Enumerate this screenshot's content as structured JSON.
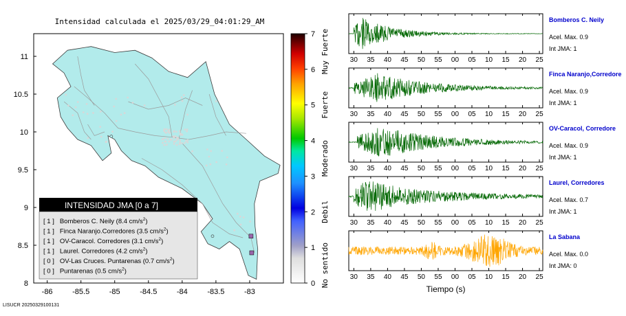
{
  "title": "Intensidad calculada el 2025/03/29_04:01:29_AM",
  "footer_id": "LISUCR 20250329100131",
  "colors": {
    "land": "#b2ebeb",
    "land_edge": "#3a3a3a",
    "roads": "#9a9a9a",
    "station_marker": "#9966aa",
    "trace_green": "#006600",
    "trace_orange": "#ffa500",
    "station_label": "#0000cc",
    "legend_header_bg": "#000000",
    "legend_body_bg": "#e6e6e6"
  },
  "map": {
    "x_ticks": [
      "-86",
      "-85.5",
      "-85",
      "-84.5",
      "-84",
      "-83.5",
      "-83"
    ],
    "y_ticks": [
      "11",
      "10.5",
      "10",
      "9.5",
      "9",
      "8.5",
      "8"
    ],
    "xlim": [
      -86.2,
      -82.5
    ],
    "ylim": [
      8,
      11.3
    ]
  },
  "colorbar": {
    "ticks": [
      "0",
      "1",
      "2",
      "3",
      "4",
      "5",
      "6",
      "7"
    ],
    "labels": [
      "No sentido",
      "Debil",
      "Moderado",
      "Fuerte",
      "Muy Fuerte"
    ],
    "range": [
      0,
      7
    ]
  },
  "legend": {
    "title": "INTENSIDAD JMA [0 a 7]",
    "items": [
      {
        "jma": "[ 1 ]",
        "text": "Bomberos C. Neily (8.4 cm/s",
        "sup": "2",
        "close": ")"
      },
      {
        "jma": "[ 1 ]",
        "text": "Finca Naranjo.Corredores (3.5 cm/s",
        "sup": "2",
        "close": ")"
      },
      {
        "jma": "[ 1 ]",
        "text": "OV-Caracol. Corredores (3.1 cm/s",
        "sup": "2",
        "close": ")"
      },
      {
        "jma": "[ 1 ]",
        "text": "Laurel. Corredores (4.2 cm/s",
        "sup": "2",
        "close": ")"
      },
      {
        "jma": "[ 0 ]",
        "text": "OV-Las Cruces. Puntarenas (0.7 cm/s",
        "sup": "2",
        "close": ")"
      },
      {
        "jma": "[ 0 ]",
        "text": "Puntarenas (0.5 cm/s",
        "sup": "2",
        "close": ")"
      }
    ]
  },
  "waveforms": {
    "x_ticks": [
      "30",
      "35",
      "40",
      "45",
      "50",
      "55",
      "00",
      "05",
      "10",
      "15",
      "20",
      "25"
    ],
    "x_label": "Tiempo (s)",
    "panels": [
      {
        "station": "Bomberos C. Neily",
        "accel": "Acel. Max. 0.9",
        "jma": "Int JMA: 1",
        "color": "#006600"
      },
      {
        "station": "Finca Naranjo,Corredore",
        "accel": "Acel. Max. 0.9",
        "jma": "Int JMA: 1",
        "color": "#006600"
      },
      {
        "station": "OV-Caracol, Corredore",
        "accel": "Acel. Max. 0.9",
        "jma": "Int JMA: 1",
        "color": "#006600"
      },
      {
        "station": "Laurel, Corredores",
        "accel": "Acel. Max. 0.7",
        "jma": "Int JMA: 1",
        "color": "#006600"
      },
      {
        "station": "La Sabana",
        "accel": "Acel. Max. 0.0",
        "jma": "Int JMA: 0",
        "color": "#ffa500"
      }
    ]
  }
}
